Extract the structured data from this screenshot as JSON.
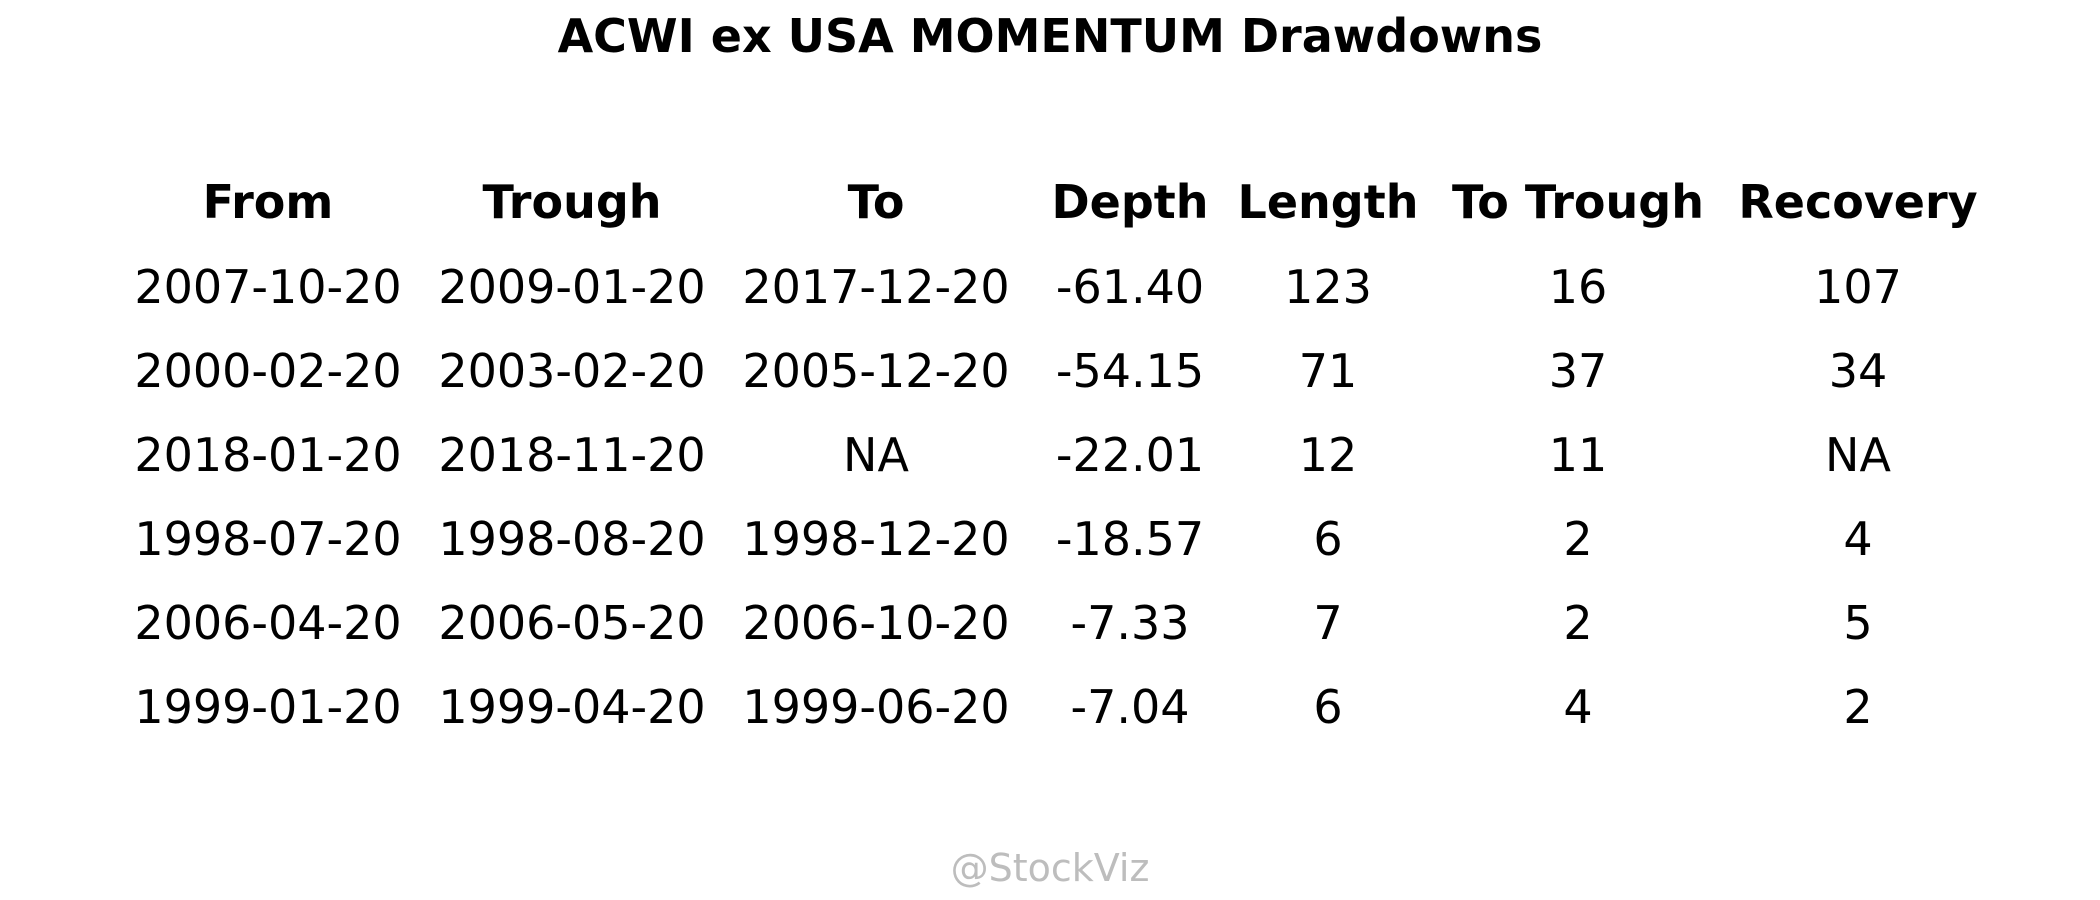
{
  "chart_data": {
    "type": "table",
    "title": "ACWI ex USA MOMENTUM Drawdowns",
    "columns": [
      "From",
      "Trough",
      "To",
      "Depth",
      "Length",
      "To Trough",
      "Recovery"
    ],
    "rows": [
      [
        "2007-10-20",
        "2009-01-20",
        "2017-12-20",
        "-61.40",
        "123",
        "16",
        "107"
      ],
      [
        "2000-02-20",
        "2003-02-20",
        "2005-12-20",
        "-54.15",
        "71",
        "37",
        "34"
      ],
      [
        "2018-01-20",
        "2018-11-20",
        "NA",
        "-22.01",
        "12",
        "11",
        "NA"
      ],
      [
        "1998-07-20",
        "1998-08-20",
        "1998-12-20",
        "-18.57",
        "6",
        "2",
        "4"
      ],
      [
        "2006-04-20",
        "2006-05-20",
        "2006-10-20",
        "-7.33",
        "7",
        "2",
        "5"
      ],
      [
        "1999-01-20",
        "1999-04-20",
        "1999-06-20",
        "-7.04",
        "6",
        "4",
        "2"
      ]
    ]
  },
  "watermark": "@StockViz"
}
